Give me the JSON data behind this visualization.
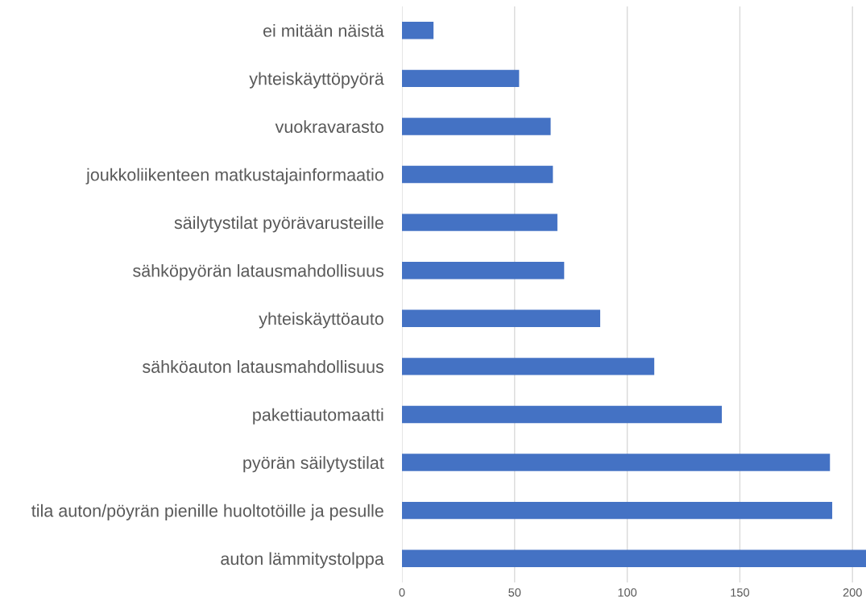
{
  "chart_data": {
    "type": "bar",
    "orientation": "horizontal",
    "categories": [
      "ei mitään näistä",
      "yhteiskäyttöpyörä",
      "vuokravarasto",
      "joukkoliikenteen matkustajainformaatio",
      "säilytystilat pyörävarusteille",
      "sähköpyörän latausmahdollisuus",
      "yhteiskäyttöauto",
      "sähköauton latausmahdollisuus",
      "pakettiautomaatti",
      "pyörän säilytystilat",
      "tila auton/pöyrän pienille huoltotöille ja pesulle",
      "auton lämmitystolppa"
    ],
    "values": [
      14,
      52,
      66,
      67,
      69,
      72,
      88,
      112,
      142,
      190,
      191,
      206
    ],
    "color": "#4472c4",
    "xlim": [
      0,
      206
    ],
    "xticks": [
      0,
      50,
      100,
      150,
      200
    ],
    "grid": "x",
    "legend": false
  }
}
